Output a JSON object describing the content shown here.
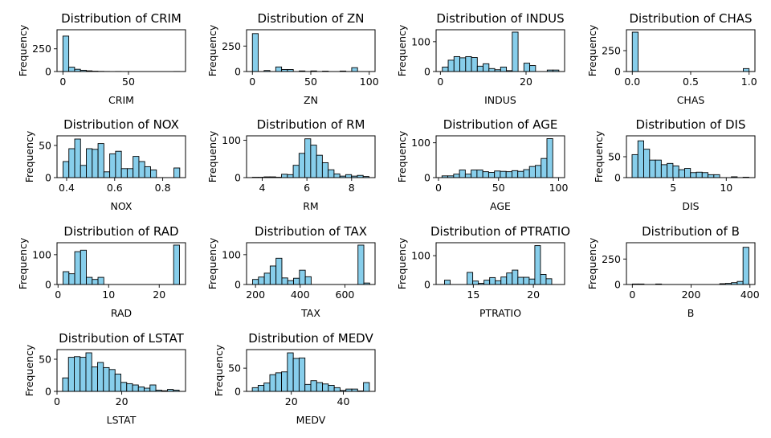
{
  "chart_data": [
    {
      "type": "bar",
      "title": "Distribution of CRIM",
      "xlabel": "CRIM",
      "ylabel": "Frequency",
      "xlim": [
        -4.5,
        93.5
      ],
      "ylim": [
        0,
        460
      ],
      "xticks": [
        0,
        50
      ],
      "yticks": [
        0,
        250
      ],
      "bin_start": 0,
      "bin_width": 4.45,
      "values": [
        390,
        48,
        25,
        14,
        8,
        4,
        2,
        1,
        0,
        1,
        0,
        0,
        0,
        0,
        0,
        0,
        0,
        0,
        0,
        1
      ]
    },
    {
      "type": "bar",
      "title": "Distribution of ZN",
      "xlabel": "ZN",
      "ylabel": "Frequency",
      "xlim": [
        -5,
        105
      ],
      "ylim": [
        0,
        410
      ],
      "xticks": [
        0,
        50,
        100
      ],
      "yticks": [
        0,
        250
      ],
      "bin_start": 0,
      "bin_width": 5,
      "values": [
        372,
        0,
        10,
        0,
        45,
        20,
        20,
        0,
        6,
        0,
        6,
        0,
        4,
        0,
        0,
        5,
        0,
        38,
        0,
        0
      ]
    },
    {
      "type": "bar",
      "title": "Distribution of INDUS",
      "xlabel": "INDUS",
      "ylabel": "Frequency",
      "xlim": [
        -1,
        29
      ],
      "ylim": [
        0,
        140
      ],
      "xticks": [
        0,
        20
      ],
      "yticks": [
        0,
        100
      ],
      "bin_start": 0.46,
      "bin_width": 1.36,
      "values": [
        15,
        38,
        50,
        46,
        50,
        47,
        18,
        26,
        10,
        6,
        15,
        3,
        132,
        0,
        28,
        20,
        0,
        0,
        5,
        5
      ]
    },
    {
      "type": "bar",
      "title": "Distribution of CHAS",
      "xlabel": "CHAS",
      "ylabel": "Frequency",
      "xlim": [
        -0.05,
        1.05
      ],
      "ylim": [
        0,
        500
      ],
      "xticks": [
        0.0,
        0.5,
        1.0
      ],
      "yticks": [
        0,
        250
      ],
      "bin_start": 0,
      "bin_width": 0.05,
      "values": [
        471,
        0,
        0,
        0,
        0,
        0,
        0,
        0,
        0,
        0,
        0,
        0,
        0,
        0,
        0,
        0,
        0,
        0,
        0,
        35
      ]
    },
    {
      "type": "bar",
      "title": "Distribution of NOX",
      "xlabel": "NOX",
      "ylabel": "Frequency",
      "xlim": [
        0.36,
        0.895
      ],
      "ylim": [
        0,
        65
      ],
      "xticks": [
        0.4,
        0.6,
        0.8
      ],
      "yticks": [
        0,
        50
      ],
      "bin_start": 0.385,
      "bin_width": 0.0243,
      "values": [
        25,
        45,
        60,
        19,
        45,
        44,
        53,
        9,
        37,
        41,
        14,
        14,
        33,
        25,
        17,
        12,
        0,
        0,
        0,
        15
      ]
    },
    {
      "type": "bar",
      "title": "Distribution of RM",
      "xlabel": "RM",
      "ylabel": "Frequency",
      "xlim": [
        3.3,
        9.05
      ],
      "ylim": [
        0,
        112
      ],
      "xticks": [
        4,
        6,
        8
      ],
      "yticks": [
        0,
        100
      ],
      "bin_start": 3.561,
      "bin_width": 0.2609,
      "values": [
        1,
        1,
        2,
        2,
        1,
        9,
        8,
        33,
        65,
        104,
        87,
        60,
        40,
        21,
        10,
        4,
        8,
        4,
        6,
        3
      ]
    },
    {
      "type": "bar",
      "title": "Distribution of AGE",
      "xlabel": "AGE",
      "ylabel": "Frequency",
      "xlim": [
        -2,
        105
      ],
      "ylim": [
        0,
        120
      ],
      "xticks": [
        0,
        50,
        100
      ],
      "yticks": [
        0,
        100
      ],
      "bin_start": 2.9,
      "bin_width": 4.855,
      "values": [
        5,
        5,
        10,
        22,
        10,
        22,
        22,
        17,
        15,
        19,
        18,
        17,
        20,
        18,
        23,
        32,
        35,
        55,
        112,
        0
      ]
    },
    {
      "type": "bar",
      "title": "Distribution of DIS",
      "xlabel": "DIS",
      "ylabel": "Frequency",
      "xlim": [
        0.6,
        12.7
      ],
      "ylim": [
        0,
        100
      ],
      "xticks": [
        5,
        10
      ],
      "yticks": [
        0,
        50
      ],
      "bin_start": 1.13,
      "bin_width": 0.55,
      "values": [
        55,
        88,
        68,
        42,
        42,
        31,
        34,
        28,
        19,
        22,
        12,
        13,
        12,
        7,
        7,
        0,
        0,
        2,
        0,
        1
      ]
    },
    {
      "type": "bar",
      "title": "Distribution of RAD",
      "xlabel": "RAD",
      "ylabel": "Frequency",
      "xlim": [
        -0.2,
        25.2
      ],
      "ylim": [
        0,
        140
      ],
      "xticks": [
        0,
        10,
        20
      ],
      "yticks": [
        0,
        100
      ],
      "bin_start": 1,
      "bin_width": 1.15,
      "values": [
        43,
        36,
        110,
        115,
        24,
        17,
        24,
        0,
        0,
        0,
        0,
        0,
        0,
        0,
        0,
        0,
        0,
        0,
        0,
        132
      ]
    },
    {
      "type": "bar",
      "title": "Distribution of TAX",
      "xlabel": "TAX",
      "ylabel": "Frequency",
      "xlim": [
        160,
        735
      ],
      "ylim": [
        0,
        140
      ],
      "xticks": [
        200,
        400,
        600
      ],
      "yticks": [
        0,
        100
      ],
      "bin_start": 187,
      "bin_width": 26.2,
      "values": [
        17,
        25,
        38,
        62,
        88,
        22,
        13,
        21,
        48,
        26,
        0,
        0,
        0,
        0,
        0,
        0,
        0,
        0,
        132,
        5
      ]
    },
    {
      "type": "bar",
      "title": "Distribution of PTRATIO",
      "xlabel": "PTRATIO",
      "ylabel": "Frequency",
      "xlim": [
        11.9,
        22.6
      ],
      "ylim": [
        0,
        145
      ],
      "xticks": [
        15,
        20
      ],
      "yticks": [
        0,
        100
      ],
      "bin_start": 12.6,
      "bin_width": 0.47,
      "values": [
        15,
        0,
        0,
        0,
        42,
        12,
        4,
        15,
        24,
        13,
        26,
        40,
        50,
        25,
        25,
        19,
        135,
        35,
        20,
        0
      ]
    },
    {
      "type": "bar",
      "title": "Distribution of B",
      "xlabel": "B",
      "ylabel": "Frequency",
      "xlim": [
        -20,
        417
      ],
      "ylim": [
        0,
        410
      ],
      "xticks": [
        0,
        200,
        400
      ],
      "yticks": [
        0,
        250
      ],
      "bin_start": 0.32,
      "bin_width": 19.8,
      "values": [
        5,
        5,
        0,
        0,
        5,
        0,
        0,
        0,
        0,
        0,
        0,
        0,
        0,
        0,
        0,
        8,
        11,
        18,
        30,
        365
      ]
    },
    {
      "type": "bar",
      "title": "Distribution of LSTAT",
      "xlabel": "LSTAT",
      "ylabel": "Frequency",
      "xlim": [
        0,
        39.7
      ],
      "ylim": [
        0,
        65
      ],
      "xticks": [
        0,
        20
      ],
      "yticks": [
        0,
        50
      ],
      "bin_start": 1.73,
      "bin_width": 1.8,
      "values": [
        21,
        53,
        54,
        53,
        60,
        38,
        45,
        37,
        34,
        27,
        14,
        12,
        10,
        7,
        5,
        10,
        2,
        1,
        3,
        2
      ]
    },
    {
      "type": "bar",
      "title": "Distribution of MEDV",
      "xlabel": "MEDV",
      "ylabel": "Frequency",
      "xlim": [
        2.8,
        52.2
      ],
      "ylim": [
        0,
        90
      ],
      "xticks": [
        20,
        40
      ],
      "yticks": [
        0,
        50
      ],
      "bin_start": 5,
      "bin_width": 2.25,
      "values": [
        8,
        13,
        18,
        36,
        40,
        42,
        83,
        71,
        72,
        15,
        23,
        19,
        16,
        13,
        8,
        2,
        5,
        5,
        1,
        19
      ]
    }
  ]
}
